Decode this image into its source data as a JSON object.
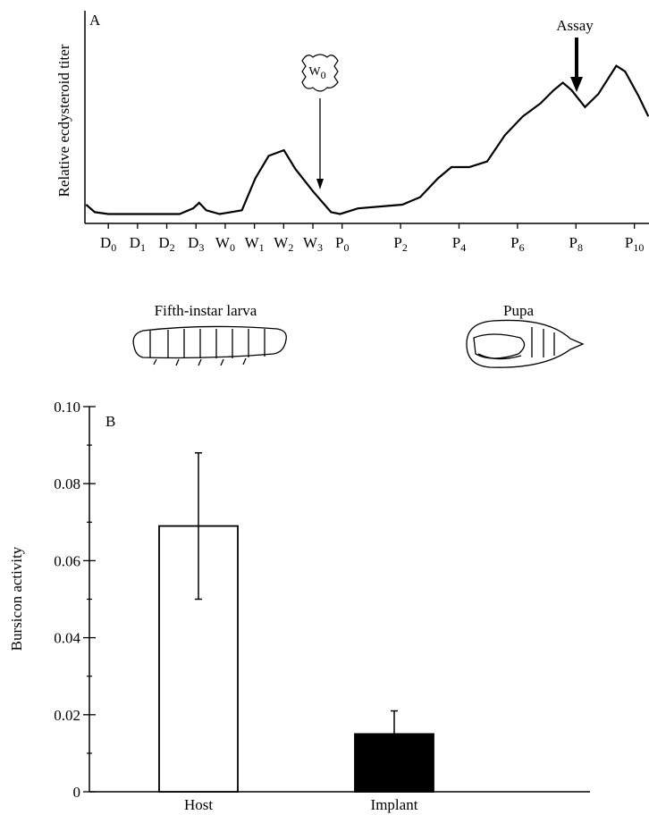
{
  "chart_data": [
    {
      "type": "line",
      "label": "A",
      "ylabel": "Relative ecdysteroid titer",
      "x": [
        -0.76,
        -0.46,
        0,
        2.44,
        2.9,
        3.11,
        3.35,
        3.81,
        4.57,
        5.03,
        5.49,
        6.01,
        6.4,
        7.01,
        7.62,
        7.93,
        8.54,
        10.06,
        10.67,
        11.28,
        11.74,
        12.35,
        12.96,
        13.57,
        14.18,
        14.79,
        15.24,
        15.55,
        15.85,
        16.31,
        16.77,
        17.38,
        17.68,
        18.14,
        18.48
      ],
      "values": [
        10,
        6,
        5,
        5,
        8,
        11,
        7,
        5,
        7,
        24,
        36,
        39,
        29,
        17,
        6,
        5,
        8,
        10,
        14,
        24,
        30,
        30,
        33,
        47,
        57,
        64,
        71,
        75,
        71,
        62,
        69,
        84,
        81,
        68,
        57
      ],
      "color": "#000000",
      "xlim": [
        -0.8,
        18.5
      ],
      "ylim": [
        0,
        100
      ],
      "xticks": [
        {
          "value": 0,
          "label": "D0"
        },
        {
          "value": 1,
          "label": "D1"
        },
        {
          "value": 2,
          "label": "D2"
        },
        {
          "value": 3,
          "label": "D3"
        },
        {
          "value": 4,
          "label": "W0"
        },
        {
          "value": 5,
          "label": "W1"
        },
        {
          "value": 6,
          "label": "W2"
        },
        {
          "value": 7,
          "label": "W3"
        },
        {
          "value": 8,
          "label": "P0"
        },
        {
          "value": 10,
          "label": "P2"
        },
        {
          "value": 12,
          "label": "P4"
        },
        {
          "value": 14,
          "label": "P6"
        },
        {
          "value": 16,
          "label": "P8"
        },
        {
          "value": 18,
          "label": "P10"
        }
      ],
      "arrow_label": "Assay",
      "icon_label": "W0",
      "stages": [
        "Fifth-instar larva",
        "Pupa"
      ]
    },
    {
      "type": "bar",
      "label": "B",
      "ylabel": "Bursicon activity",
      "categories": [
        "Host",
        "Implant"
      ],
      "values": [
        0.069,
        0.015
      ],
      "errors": [
        0.019,
        0.006
      ],
      "colors": [
        "#ffffff",
        "#000000"
      ],
      "ylim": [
        0,
        0.1
      ],
      "yticks": [
        0,
        0.02,
        0.04,
        0.06,
        0.08,
        {
          "value": 0.1,
          "label": "0.10"
        }
      ],
      "minor_yticks": [
        0.01,
        0.03,
        0.05,
        0.07,
        0.09
      ]
    }
  ]
}
